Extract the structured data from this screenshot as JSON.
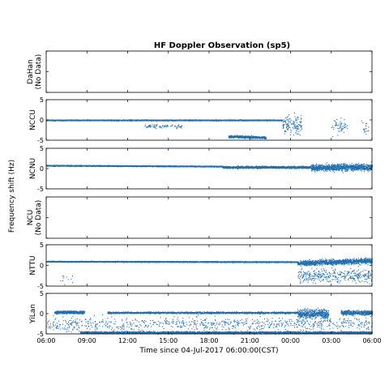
{
  "chart_data": {
    "type": "scatter",
    "title": "HF Doppler Observation (sp5)",
    "ylabel": "Frequency shift (Hz)",
    "xlabel": "Time since 04-Jul-2017 06:00:00(CST)",
    "x_ticks": [
      "06:00",
      "09:00",
      "12:00",
      "15:00",
      "18:00",
      "21:00",
      "00:00",
      "03:00",
      "06:00"
    ],
    "x_range_hours": [
      0,
      24
    ],
    "y_range": [
      -5,
      5
    ],
    "y_ticks": [
      -5,
      0,
      5
    ],
    "point_color": "#1f6fb5",
    "panels": [
      {
        "station": "DaHan",
        "note": "(No Data)",
        "has_data": false,
        "bands": []
      },
      {
        "station": "NCCU",
        "note": "",
        "has_data": true,
        "bands": [
          {
            "t": [
              0,
              17.4
            ],
            "f": [
              0.0,
              0.0
            ],
            "sd": 0.12,
            "density": 1.0
          },
          {
            "t": [
              7.2,
              10.0
            ],
            "f": [
              -1.5,
              -1.5
            ],
            "sd": 0.5,
            "density": 0.12
          },
          {
            "t": [
              13.4,
              16.2
            ],
            "f": [
              -4.0,
              -4.3
            ],
            "sd": 0.3,
            "density": 0.8
          },
          {
            "t": [
              17.4,
              18.8
            ],
            "f": [
              -1.0,
              -1.0
            ],
            "sd": 2.0,
            "density": 0.45
          },
          {
            "t": [
              21.0,
              22.2
            ],
            "f": [
              -1.2,
              -1.2
            ],
            "sd": 1.6,
            "density": 0.2
          },
          {
            "t": [
              23.2,
              23.8
            ],
            "f": [
              -2.0,
              -2.0
            ],
            "sd": 1.5,
            "density": 0.15
          }
        ]
      },
      {
        "station": "NCNU",
        "note": "",
        "has_data": true,
        "bands": [
          {
            "t": [
              0,
              13.0
            ],
            "f": [
              0.8,
              0.6
            ],
            "sd": 0.12,
            "density": 1.0
          },
          {
            "t": [
              13.0,
              19.5
            ],
            "f": [
              0.4,
              0.4
            ],
            "sd": 0.25,
            "density": 1.0
          },
          {
            "t": [
              19.5,
              24.0
            ],
            "f": [
              0.3,
              0.4
            ],
            "sd": 0.8,
            "density": 1.0
          }
        ]
      },
      {
        "station": "NCU",
        "note": "(No Data)",
        "has_data": false,
        "bands": []
      },
      {
        "station": "NTTU",
        "note": "",
        "has_data": true,
        "bands": [
          {
            "t": [
              0,
              18.5
            ],
            "f": [
              1.0,
              0.9
            ],
            "sd": 0.12,
            "density": 1.0
          },
          {
            "t": [
              18.5,
              24.0
            ],
            "f": [
              0.6,
              1.2
            ],
            "sd": 0.6,
            "density": 1.0
          },
          {
            "t": [
              18.5,
              24.0
            ],
            "f": [
              -2.5,
              -2.5
            ],
            "sd": 1.6,
            "density": 0.3
          },
          {
            "t": [
              1.0,
              2.0
            ],
            "f": [
              -3.5,
              -3.5
            ],
            "sd": 1.2,
            "density": 0.05
          }
        ]
      },
      {
        "station": "YiLan",
        "note": "",
        "has_data": true,
        "bands": [
          {
            "t": [
              0.6,
              2.8
            ],
            "f": [
              0.4,
              0.4
            ],
            "sd": 0.35,
            "density": 1.0
          },
          {
            "t": [
              4.5,
              18.5
            ],
            "f": [
              0.3,
              0.3
            ],
            "sd": 0.2,
            "density": 0.6
          },
          {
            "t": [
              18.5,
              20.8
            ],
            "f": [
              0.0,
              0.0
            ],
            "sd": 1.0,
            "density": 1.0
          },
          {
            "t": [
              21.7,
              24.0
            ],
            "f": [
              0.3,
              0.3
            ],
            "sd": 0.5,
            "density": 1.0
          },
          {
            "t": [
              2.5,
              24.0
            ],
            "f": [
              -4.6,
              -4.6
            ],
            "sd": 0.25,
            "density": 0.7
          },
          {
            "t": [
              0,
              24.0
            ],
            "f": [
              -2.5,
              -2.5
            ],
            "sd": 1.6,
            "density": 0.15
          }
        ]
      }
    ]
  }
}
